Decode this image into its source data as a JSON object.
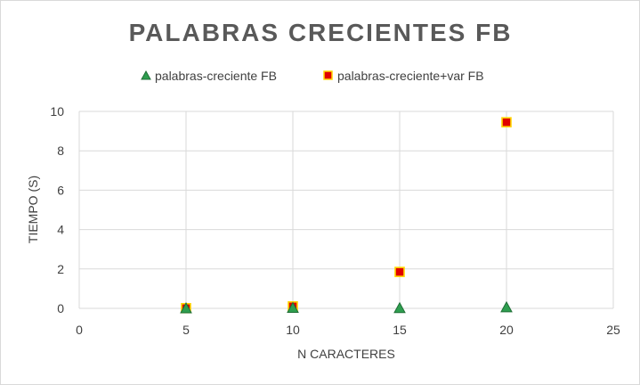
{
  "chart_data": {
    "type": "scatter",
    "title": "PALABRAS CRECIENTES FB",
    "xlabel": "N CARACTERES",
    "ylabel": "TIEMPO (S)",
    "xlim": [
      0,
      25
    ],
    "ylim": [
      0,
      10
    ],
    "xticks": [
      "0",
      "5",
      "10",
      "15",
      "20",
      "25"
    ],
    "yticks": [
      "0",
      "2",
      "4",
      "6",
      "8",
      "10"
    ],
    "grid": true,
    "legend_position": "top",
    "series": [
      {
        "name": "palabras-creciente FB",
        "marker": "triangle",
        "color": "#2e9e4f",
        "x": [
          5,
          10,
          15,
          20
        ],
        "y": [
          0.0,
          0.02,
          0.01,
          0.05
        ]
      },
      {
        "name": "palabras-creciente+var FB",
        "marker": "square",
        "color": "#e00000",
        "edge_color": "#ffd700",
        "x": [
          5,
          10,
          15,
          20
        ],
        "y": [
          0.01,
          0.1,
          1.85,
          9.45
        ]
      }
    ]
  }
}
